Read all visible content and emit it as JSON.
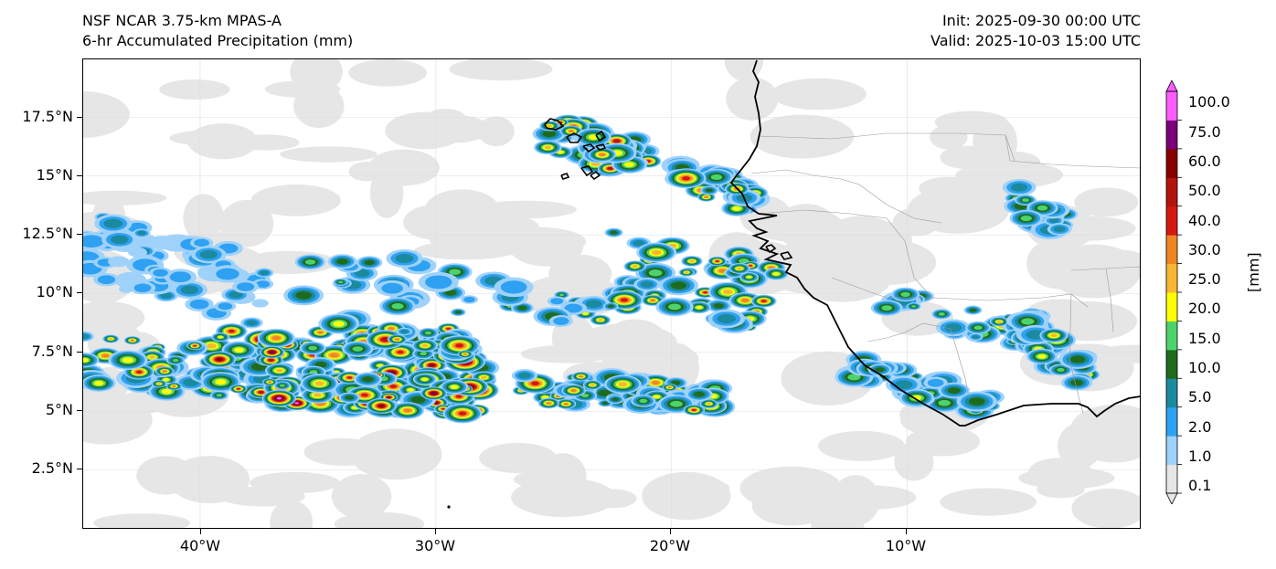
{
  "header": {
    "model": "NSF NCAR 3.75-km MPAS-A",
    "field": "6-hr Accumulated Precipitation (mm)",
    "init": "Init: 2025-09-30 00:00 UTC",
    "valid": "Valid: 2025-10-03 15:00 UTC"
  },
  "axes": {
    "lat_labels": [
      "17.5°N",
      "15°N",
      "12.5°N",
      "10°N",
      "7.5°N",
      "5°N",
      "2.5°N"
    ],
    "lat_values": [
      17.5,
      15,
      12.5,
      10,
      7.5,
      5,
      2.5
    ],
    "lon_labels": [
      "40°W",
      "30°W",
      "20°W",
      "10°W"
    ],
    "lon_values": [
      -40,
      -30,
      -20,
      -10
    ],
    "lon_range": [
      -45,
      -0.1
    ],
    "lat_range": [
      0,
      20
    ]
  },
  "colorbar": {
    "units": "[mm]",
    "levels": [
      "0.1",
      "1.0",
      "2.0",
      "5.0",
      "10.0",
      "15.0",
      "20.0",
      "25.0",
      "30.0",
      "40.0",
      "50.0",
      "60.0",
      "75.0",
      "100.0"
    ],
    "colors": [
      "#e6e6e6",
      "#9fd2fa",
      "#2ea1f2",
      "#1b8a9e",
      "#1e6b1e",
      "#4dd36b",
      "#ffff00",
      "#f7b733",
      "#ee8722",
      "#d4180f",
      "#b2140d",
      "#870000",
      "#7a007a",
      "#ff5cff"
    ]
  },
  "map_features": {
    "coastline_color": "#000000",
    "border_color": "#888888",
    "gridline_color": "#dddddd"
  }
}
